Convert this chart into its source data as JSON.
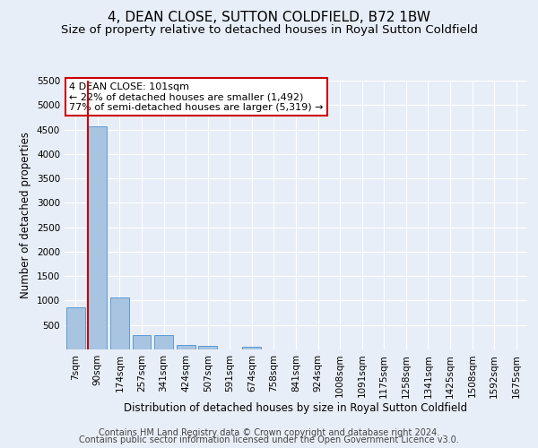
{
  "title": "4, DEAN CLOSE, SUTTON COLDFIELD, B72 1BW",
  "subtitle": "Size of property relative to detached houses in Royal Sutton Coldfield",
  "xlabel": "Distribution of detached houses by size in Royal Sutton Coldfield",
  "ylabel": "Number of detached properties",
  "footer_line1": "Contains HM Land Registry data © Crown copyright and database right 2024.",
  "footer_line2": "Contains public sector information licensed under the Open Government Licence v3.0.",
  "categories": [
    "7sqm",
    "90sqm",
    "174sqm",
    "257sqm",
    "341sqm",
    "424sqm",
    "507sqm",
    "591sqm",
    "674sqm",
    "758sqm",
    "841sqm",
    "924sqm",
    "1008sqm",
    "1091sqm",
    "1175sqm",
    "1258sqm",
    "1341sqm",
    "1425sqm",
    "1508sqm",
    "1592sqm",
    "1675sqm"
  ],
  "values": [
    870,
    4560,
    1060,
    290,
    285,
    85,
    80,
    0,
    60,
    0,
    0,
    0,
    0,
    0,
    0,
    0,
    0,
    0,
    0,
    0,
    0
  ],
  "bar_color": "#a8c4e0",
  "bar_edge_color": "#5b9bd5",
  "vline_x_index": 0.57,
  "annotation_text": "4 DEAN CLOSE: 101sqm\n← 22% of detached houses are smaller (1,492)\n77% of semi-detached houses are larger (5,319) →",
  "annotation_box_color": "#ffffff",
  "annotation_box_edge": "#cc0000",
  "vline_color": "#cc0000",
  "ylim": [
    0,
    5500
  ],
  "yticks": [
    0,
    500,
    1000,
    1500,
    2000,
    2500,
    3000,
    3500,
    4000,
    4500,
    5000,
    5500
  ],
  "bg_color": "#e8eef8",
  "grid_color": "#ffffff",
  "title_fontsize": 11,
  "subtitle_fontsize": 9.5,
  "axis_label_fontsize": 8.5,
  "tick_fontsize": 7.5,
  "footer_fontsize": 7
}
